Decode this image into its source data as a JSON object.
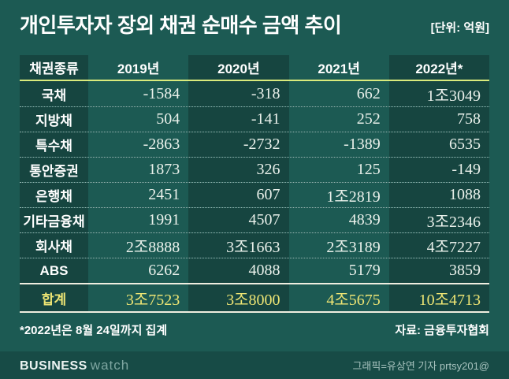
{
  "title": "개인투자자 장외 채권 순매수 금액 추이",
  "unit_label": "[단위: 억원]",
  "table": {
    "columns": [
      "채권종류",
      "2019년",
      "2020년",
      "2021년",
      "2022년*"
    ],
    "rows": [
      {
        "label": "국채",
        "values": [
          "-1584",
          "-318",
          "662",
          "1조3049"
        ]
      },
      {
        "label": "지방채",
        "values": [
          "504",
          "-141",
          "252",
          "758"
        ]
      },
      {
        "label": "특수채",
        "values": [
          "-2863",
          "-2732",
          "-1389",
          "6535"
        ]
      },
      {
        "label": "통안증권",
        "values": [
          "1873",
          "326",
          "125",
          "-149"
        ]
      },
      {
        "label": "은행채",
        "values": [
          "2451",
          "607",
          "1조2819",
          "1088"
        ]
      },
      {
        "label": "기타금융채",
        "values": [
          "1991",
          "4507",
          "4839",
          "3조2346"
        ]
      },
      {
        "label": "회사채",
        "values": [
          "2조8888",
          "3조1663",
          "2조3189",
          "4조7227"
        ]
      },
      {
        "label": "ABS",
        "values": [
          "6262",
          "4088",
          "5179",
          "3859"
        ]
      }
    ],
    "total_row": {
      "label": "합계",
      "values": [
        "3조7523",
        "3조8000",
        "4조5675",
        "10조4713"
      ]
    }
  },
  "footnote": "*2022년은 8월 24일까지 집계",
  "source": "자료: 금융투자협회",
  "footer": {
    "logo_primary": "BUSINESS",
    "logo_secondary": "watch",
    "credit": "그래픽=유상연 기자 prtsy201@"
  },
  "colors": {
    "background": "#1C5A53",
    "column_band": "#164540",
    "footer_bar": "#174B46",
    "header_underline": "#D9EA7C",
    "total_divider": "#EFEEE0",
    "number_text": "#EAF1EB",
    "total_text": "#EEE574"
  },
  "chart_data": {
    "type": "table",
    "title": "개인투자자 장외 채권 순매수 금액 추이",
    "unit": "억원",
    "categories": [
      "2019년",
      "2020년",
      "2021년",
      "2022년*"
    ],
    "series": [
      {
        "name": "국채",
        "values": [
          -1584,
          -318,
          662,
          13049
        ]
      },
      {
        "name": "지방채",
        "values": [
          504,
          -141,
          252,
          758
        ]
      },
      {
        "name": "특수채",
        "values": [
          -2863,
          -2732,
          -1389,
          6535
        ]
      },
      {
        "name": "통안증권",
        "values": [
          1873,
          326,
          125,
          -149
        ]
      },
      {
        "name": "은행채",
        "values": [
          2451,
          607,
          12819,
          1088
        ]
      },
      {
        "name": "기타금융채",
        "values": [
          1991,
          4507,
          4839,
          32346
        ]
      },
      {
        "name": "회사채",
        "values": [
          28888,
          31663,
          23189,
          47227
        ]
      },
      {
        "name": "ABS",
        "values": [
          6262,
          4088,
          5179,
          3859
        ]
      },
      {
        "name": "합계",
        "values": [
          37523,
          38000,
          45675,
          104713
        ]
      }
    ]
  }
}
